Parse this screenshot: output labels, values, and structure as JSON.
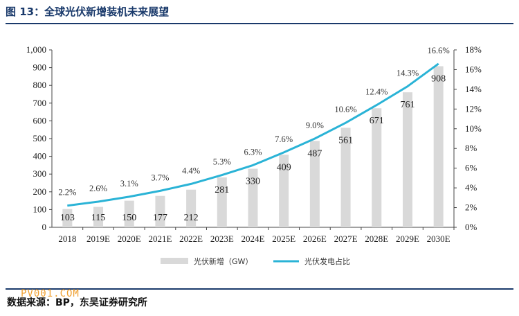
{
  "header": {
    "title": "图 13：全球光伏新增装机未来展望"
  },
  "footer": {
    "source": "数据来源：BP，东吴证券研究所",
    "watermark": "PV001.COM"
  },
  "colors": {
    "bar": "#d9d9d9",
    "line": "#2ab3d6",
    "header": "#1a3a6b"
  },
  "chart_data": {
    "type": "bar",
    "categories": [
      "2018",
      "2019E",
      "2020E",
      "2021E",
      "2022E",
      "2023E",
      "2024E",
      "2025E",
      "2026E",
      "2027E",
      "2028E",
      "2029E",
      "2030E"
    ],
    "series": [
      {
        "name": "光伏新增（GW）",
        "type": "bar",
        "axis": "left",
        "values": [
          103,
          115,
          150,
          177,
          212,
          281,
          330,
          409,
          487,
          561,
          671,
          761,
          908
        ]
      },
      {
        "name": "光伏发电占比",
        "type": "line",
        "axis": "right",
        "values": [
          2.2,
          2.6,
          3.1,
          3.7,
          4.4,
          5.3,
          6.3,
          7.6,
          9.0,
          10.6,
          12.4,
          14.3,
          16.6
        ],
        "labels": [
          "2.2%",
          "2.6%",
          "3.1%",
          "3.7%",
          "4.4%",
          "5.3%",
          "6.3%",
          "7.6%",
          "9.0%",
          "10.6%",
          "12.4%",
          "14.3%",
          "16.6%"
        ]
      }
    ],
    "left_axis": {
      "ylim": [
        0,
        1000
      ],
      "ticks": [
        "0",
        "100",
        "200",
        "300",
        "400",
        "500",
        "600",
        "700",
        "800",
        "900",
        "1,000"
      ]
    },
    "right_axis": {
      "ylim": [
        0,
        18
      ],
      "ticks": [
        "0%",
        "2%",
        "4%",
        "6%",
        "8%",
        "10%",
        "12%",
        "14%",
        "16%",
        "18%"
      ]
    },
    "legend_position": "bottom",
    "grid": false
  }
}
